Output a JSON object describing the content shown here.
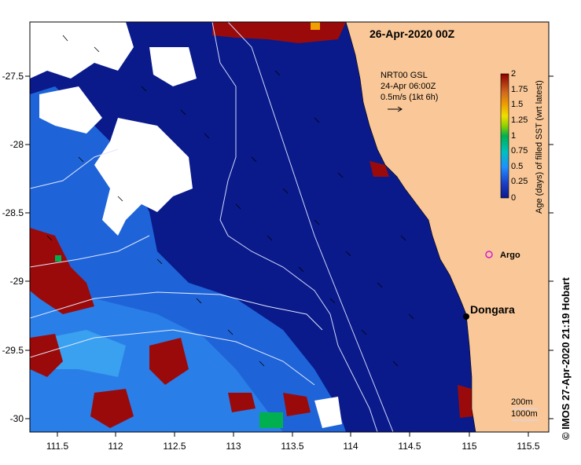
{
  "map": {
    "title": "26-Apr-2020 00Z",
    "x_ticks": [
      "111.5",
      "112",
      "112.5",
      "113",
      "113.5",
      "114",
      "114.5",
      "115",
      "115.5"
    ],
    "y_ticks": [
      "-27.5",
      "-28",
      "-28.5",
      "-29",
      "-29.5",
      "-30"
    ],
    "current_legend": {
      "line1": "NRT00 GSL",
      "line2": "24-Apr 06:00Z",
      "line3": "0.5m/s (1kt 6h)"
    },
    "colorbar": {
      "label": "Age (days) of filled SST (wrt latest)",
      "ticks": [
        "2",
        "1.75",
        "1.5",
        "1.25",
        "1",
        "0.75",
        "0.5",
        "0.25",
        "0"
      ],
      "colors": [
        "#8b0000",
        "#b22222",
        "#d2691e",
        "#f0a000",
        "#f0e000",
        "#8fd000",
        "#00b050",
        "#00c0c0",
        "#1e90ff",
        "#2060e0",
        "#0a1a8a"
      ]
    },
    "places": {
      "argo": "Argo",
      "dongara": "Dongara"
    },
    "depth_legend": {
      "line1": "200m",
      "line2": "1000m"
    },
    "credit": "© IMOS 27-Apr-2020 21:19 Hobart",
    "colors": {
      "land": "#fac898",
      "deep_water": "#0a1a8a",
      "mid_water": "#1e64d8",
      "old_sst": "#9b0a0a",
      "no_data": "#ffffff"
    }
  }
}
